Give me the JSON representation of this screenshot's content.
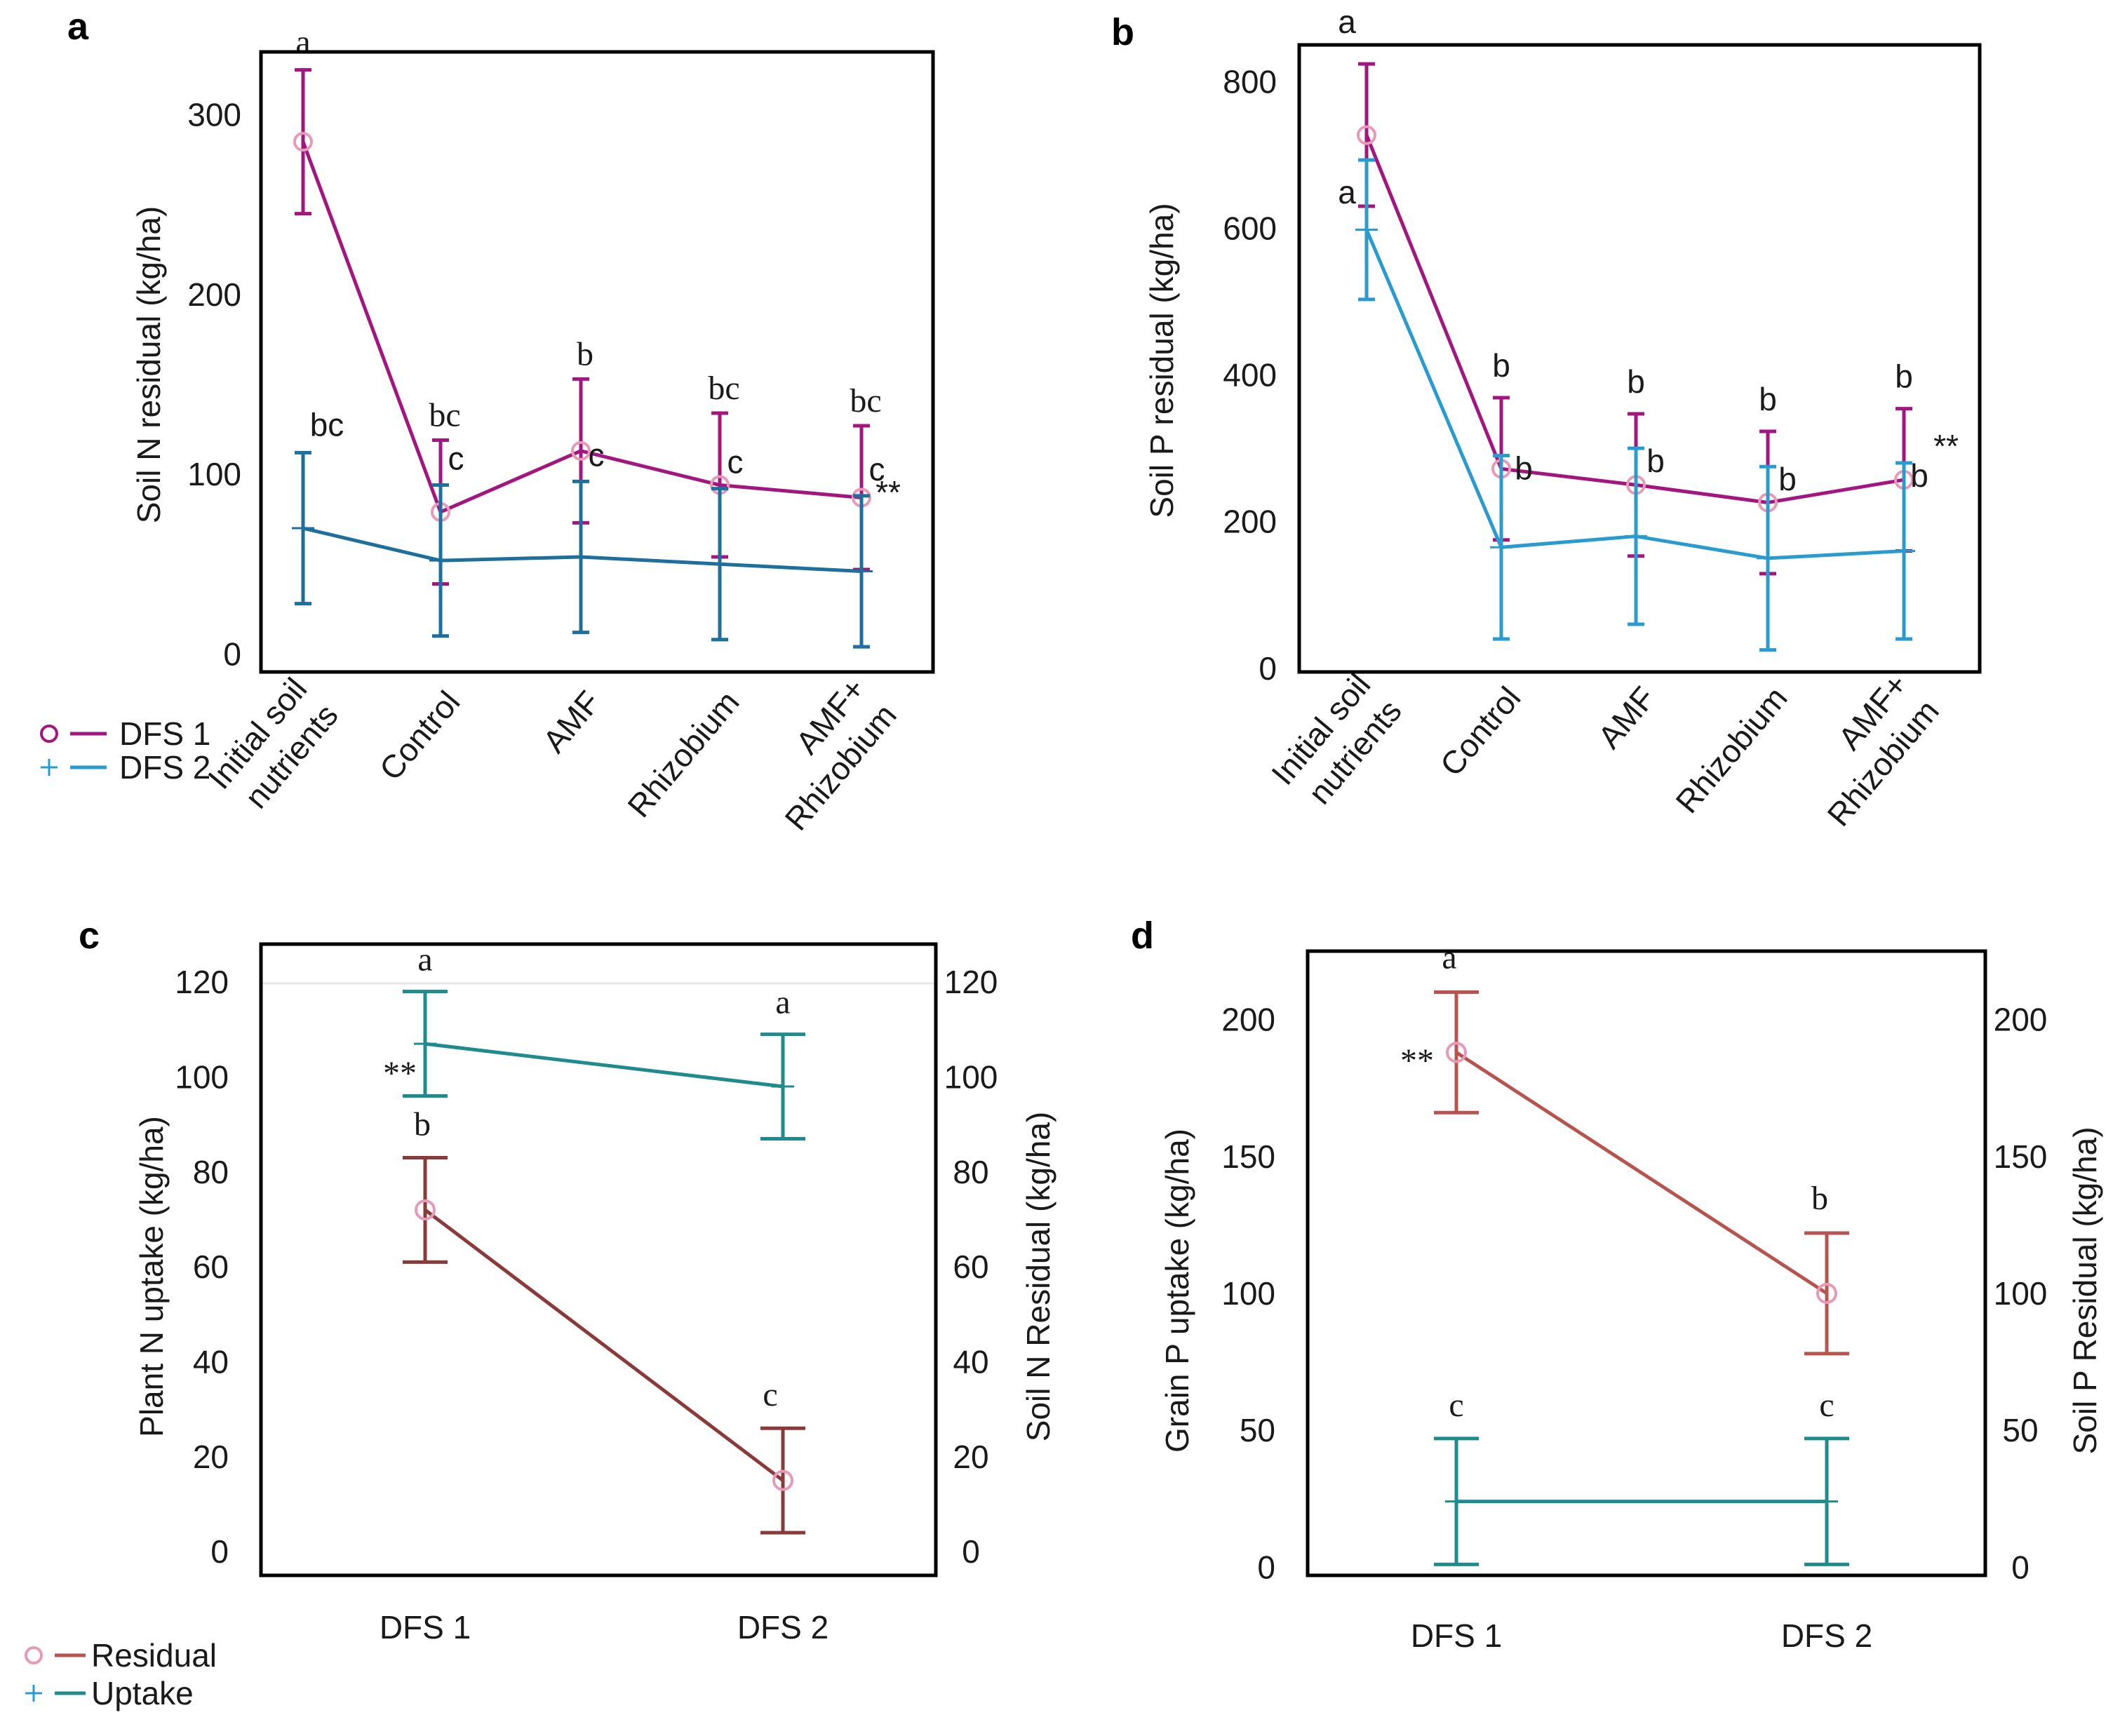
{
  "colors": {
    "dfs1": "#A3157F",
    "dfs2_a": "#1E6E9E",
    "dfs2_b": "#2A9BD1",
    "residual": "#8B3A3A",
    "residual_d": "#B85450",
    "uptake": "#1E8C8C",
    "axis": "#000000"
  },
  "legends": {
    "top": {
      "items": [
        {
          "marker": "○",
          "label": "DFS 1"
        },
        {
          "marker": "+",
          "label": "DFS 2"
        }
      ]
    },
    "bottom": {
      "items": [
        {
          "marker": "○",
          "label": "Residual"
        },
        {
          "marker": "+",
          "label": "Uptake"
        }
      ]
    }
  },
  "chart_data": [
    {
      "panel": "a",
      "type": "line",
      "title": "",
      "ylabel": "Soil  N residual (kg/ha)",
      "xlabel": "",
      "categories": [
        "Initial soil nutrients",
        "Control",
        "AMF",
        "Rhizobium",
        "AMF+ Rhizobium"
      ],
      "category_lines": [
        [
          "Initial soil",
          "nutrients"
        ],
        [
          "Control"
        ],
        [
          "AMF"
        ],
        [
          "Rhizobium"
        ],
        [
          "AMF+",
          "Rhizobium"
        ]
      ],
      "ylim": [
        -10,
        335
      ],
      "yticks": [
        0,
        100,
        200,
        300
      ],
      "grid": false,
      "legend": "bottom-left, outside",
      "series": [
        {
          "name": "DFS 1",
          "marker": "circle",
          "color": "#A3157F",
          "values": [
            285,
            79,
            113,
            94,
            87
          ],
          "err": [
            40,
            40,
            40,
            40,
            40
          ],
          "letters": [
            "a",
            "bc",
            "b",
            "bc",
            "bc"
          ]
        },
        {
          "name": "DFS 2",
          "marker": "plus",
          "color": "#1E6E9E",
          "values": [
            70,
            52,
            54,
            50,
            46
          ],
          "err": [
            42,
            42,
            42,
            42,
            42
          ],
          "letters": [
            "bc",
            "c",
            "c",
            "c",
            "c"
          ]
        }
      ],
      "annotation": "**"
    },
    {
      "panel": "b",
      "type": "line",
      "title": "",
      "ylabel": "Soil P residual  (kg/ha)",
      "xlabel": "",
      "categories": [
        "Initial soil nutrients",
        "Control",
        "AMF",
        "Rhizobium",
        "AMF+ Rhizobium"
      ],
      "category_lines": [
        [
          "Initial soil",
          "nutrients"
        ],
        [
          "Control"
        ],
        [
          "AMF"
        ],
        [
          "Rhizobium"
        ],
        [
          "AMF+",
          "Rhizobium"
        ]
      ],
      "ylim": [
        -5,
        850
      ],
      "yticks": [
        0,
        200,
        400,
        600,
        800
      ],
      "grid": false,
      "legend": "none",
      "series": [
        {
          "name": "DFS 1",
          "marker": "circle",
          "color": "#A3157F",
          "values": [
            727,
            272,
            250,
            226,
            257
          ],
          "err": [
            97,
            97,
            97,
            97,
            97
          ],
          "letters": [
            "a",
            "b",
            "b",
            "b",
            "b"
          ]
        },
        {
          "name": "DFS 2",
          "marker": "plus",
          "color": "#2A9BD1",
          "values": [
            598,
            165,
            180,
            150,
            160
          ],
          "err": [
            95,
            125,
            120,
            125,
            120
          ],
          "letters": [
            "a",
            "b",
            "b",
            "b",
            "b"
          ]
        }
      ],
      "annotation": "**"
    },
    {
      "panel": "c",
      "type": "line",
      "title": "",
      "ylabel": "Plant N uptake (kg/ha)",
      "y2label": "Soil N Residual (kg/ha)",
      "xlabel": "",
      "categories": [
        "DFS 1",
        "DFS 2"
      ],
      "ylim": [
        -5,
        128
      ],
      "yticks": [
        0,
        20,
        40,
        60,
        80,
        100,
        120
      ],
      "y2ticks": [
        0,
        20,
        40,
        60,
        80,
        100,
        120
      ],
      "grid": false,
      "legend": "bottom-left, outside",
      "series": [
        {
          "name": "Uptake",
          "marker": "plus",
          "color": "#1E8C8C",
          "values": [
            107,
            98
          ],
          "err": [
            11,
            11
          ],
          "letters": [
            "a",
            "a"
          ]
        },
        {
          "name": "Residual",
          "marker": "circle",
          "color": "#8B3A3A",
          "values": [
            72,
            15
          ],
          "err": [
            11,
            11
          ],
          "letters": [
            "b",
            "c"
          ]
        }
      ],
      "annotation": "**"
    },
    {
      "panel": "d",
      "type": "line",
      "title": "",
      "ylabel": "Grain  P uptake  (kg/ha)",
      "y2label": "Soil P Residual (kg/ha)",
      "xlabel": "",
      "categories": [
        "DFS 1",
        "DFS 2"
      ],
      "ylim": [
        -3,
        225
      ],
      "yticks": [
        0,
        50,
        100,
        150,
        200
      ],
      "y2ticks": [
        0,
        50,
        100,
        150,
        200
      ],
      "grid": false,
      "legend": "none",
      "series": [
        {
          "name": "Residual",
          "marker": "circle",
          "color": "#B85450",
          "values": [
            188,
            100
          ],
          "err": [
            22,
            22
          ],
          "letters": [
            "a",
            "b"
          ]
        },
        {
          "name": "Uptake",
          "marker": "plus",
          "color": "#1E8C8C",
          "values": [
            24,
            24
          ],
          "err": [
            23,
            23
          ],
          "letters": [
            "c",
            "c"
          ]
        }
      ],
      "annotation": "**"
    }
  ]
}
